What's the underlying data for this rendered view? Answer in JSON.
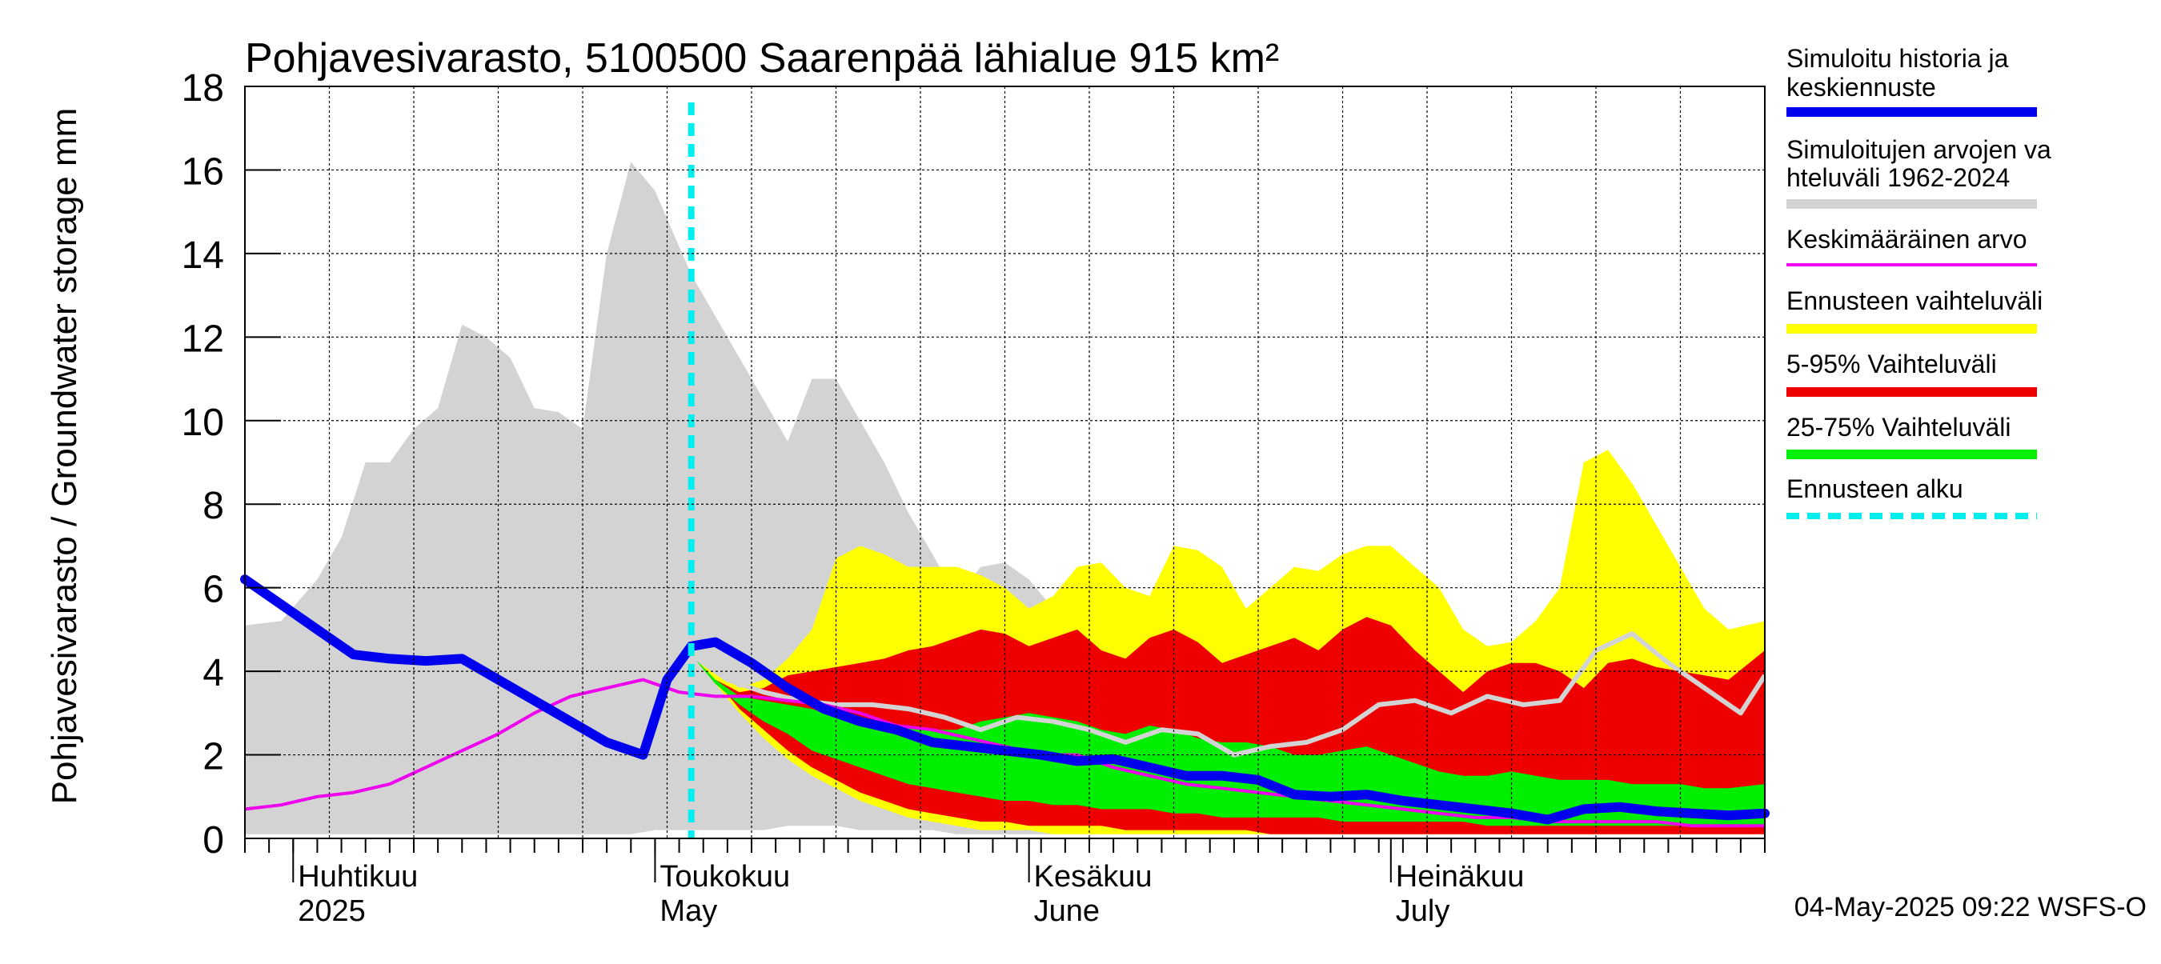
{
  "chart_data": {
    "type": "area",
    "title": "Pohjavesivarasto, 5100500 Saarenpää lähialue 915 km²",
    "ylabel": "Pohjavesivarasto / Groundwater storage   mm",
    "ylim": [
      0,
      18
    ],
    "yticks": [
      0,
      2,
      4,
      6,
      8,
      10,
      12,
      14,
      16,
      18
    ],
    "xlim": [
      "2025-03-28",
      "2025-08-01"
    ],
    "grid": true,
    "legend_position": "right",
    "month_labels": [
      {
        "date": "2025-04-01",
        "fi": "Huhtikuu",
        "en": "2025"
      },
      {
        "date": "2025-05-01",
        "fi": "Toukokuu",
        "en": "May"
      },
      {
        "date": "2025-06-01",
        "fi": "Kesäkuu",
        "en": "June"
      },
      {
        "date": "2025-07-01",
        "fi": "Heinäkuu",
        "en": "July"
      }
    ],
    "forecast_start": "2025-05-04",
    "timestamp": "04-May-2025 09:22 WSFS-O",
    "colors": {
      "simulated": "#0000ee",
      "range_all": "#d3d3d3",
      "mean": "#ee00ee",
      "forecast_range": "#ffff00",
      "p5_95": "#ee0000",
      "p25_75": "#00ee00",
      "forecast_start": "#00eeee",
      "grid": "#000000"
    },
    "legend": [
      {
        "label": "Simuloitu historia ja keskiennuste",
        "series": "simulated"
      },
      {
        "label": "Simuloitujen arvojen vaihteluväli 1962-2024",
        "series": "range_all"
      },
      {
        "label": "Keskimääräinen arvo",
        "series": "mean"
      },
      {
        "label": "Ennusteen vaihteluväli",
        "series": "forecast_range"
      },
      {
        "label": "5-95% Vaihteluväli",
        "series": "p5_95"
      },
      {
        "label": "25-75% Vaihteluväli",
        "series": "p25_75"
      },
      {
        "label": "Ennusteen alku",
        "series": "forecast_start"
      }
    ],
    "range_all": {
      "x": [
        "2025-03-28",
        "2025-03-31",
        "2025-04-03",
        "2025-04-05",
        "2025-04-07",
        "2025-04-09",
        "2025-04-11",
        "2025-04-13",
        "2025-04-15",
        "2025-04-17",
        "2025-04-19",
        "2025-04-21",
        "2025-04-23",
        "2025-04-25",
        "2025-04-27",
        "2025-04-29",
        "2025-05-01",
        "2025-05-04",
        "2025-05-06",
        "2025-05-08",
        "2025-05-10",
        "2025-05-12",
        "2025-05-14",
        "2025-05-16",
        "2025-05-18",
        "2025-05-20",
        "2025-05-22",
        "2025-05-24",
        "2025-05-26",
        "2025-05-28",
        "2025-05-30",
        "2025-06-01",
        "2025-06-03",
        "2025-06-05",
        "2025-06-07",
        "2025-06-09",
        "2025-06-11",
        "2025-06-13",
        "2025-06-15",
        "2025-06-17",
        "2025-06-19",
        "2025-06-21",
        "2025-06-23",
        "2025-06-25",
        "2025-06-27",
        "2025-06-29",
        "2025-07-01",
        "2025-07-03",
        "2025-07-05",
        "2025-07-07",
        "2025-07-09",
        "2025-07-11",
        "2025-07-13",
        "2025-07-15",
        "2025-07-17",
        "2025-07-19",
        "2025-07-21",
        "2025-07-23",
        "2025-07-25",
        "2025-07-27",
        "2025-07-29",
        "2025-08-01"
      ],
      "upper": [
        5.1,
        5.2,
        6.2,
        7.2,
        9.0,
        9.0,
        9.8,
        10.3,
        12.3,
        12.0,
        11.5,
        10.3,
        10.2,
        9.8,
        14.0,
        16.2,
        15.5,
        13.5,
        12.5,
        11.5,
        10.5,
        9.5,
        11.0,
        11.0,
        10.0,
        9.0,
        7.8,
        6.8,
        5.8,
        6.5,
        6.6,
        6.2,
        5.5,
        6.5,
        6.0,
        5.4,
        4.9,
        4.7,
        4.3,
        3.9,
        3.6,
        3.2,
        3.2,
        3.0,
        2.8,
        2.6,
        2.5,
        2.4,
        2.3,
        2.2,
        2.1,
        2.0,
        1.9,
        1.8,
        1.7,
        1.7,
        1.6,
        1.5,
        1.5,
        1.4,
        1.4,
        1.3
      ],
      "lower": [
        0.1,
        0.1,
        0.1,
        0.1,
        0.1,
        0.1,
        0.1,
        0.1,
        0.1,
        0.1,
        0.1,
        0.1,
        0.1,
        0.1,
        0.1,
        0.1,
        0.2,
        0.2,
        0.2,
        0.2,
        0.2,
        0.3,
        0.3,
        0.3,
        0.2,
        0.2,
        0.2,
        0.2,
        0.1,
        0.1,
        0.1,
        0.1,
        0.1,
        0.1,
        0.1,
        0.1,
        0.1,
        0.1,
        0.1,
        0.1,
        0.1,
        0.1,
        0.1,
        0.1,
        0.1,
        0.1,
        0.1,
        0.1,
        0.1,
        0.1,
        0.1,
        0.1,
        0.1,
        0.1,
        0.1,
        0.1,
        0.1,
        0.1,
        0.1,
        0.1,
        0.1,
        0.1
      ]
    },
    "forecast_range": {
      "x": [
        "2025-05-04",
        "2025-05-06",
        "2025-05-08",
        "2025-05-10",
        "2025-05-12",
        "2025-05-14",
        "2025-05-16",
        "2025-05-18",
        "2025-05-20",
        "2025-05-22",
        "2025-05-24",
        "2025-05-26",
        "2025-05-28",
        "2025-05-30",
        "2025-06-01",
        "2025-06-03",
        "2025-06-05",
        "2025-06-07",
        "2025-06-09",
        "2025-06-11",
        "2025-06-13",
        "2025-06-15",
        "2025-06-17",
        "2025-06-19",
        "2025-06-21",
        "2025-06-23",
        "2025-06-25",
        "2025-06-27",
        "2025-06-29",
        "2025-07-01",
        "2025-07-03",
        "2025-07-05",
        "2025-07-07",
        "2025-07-09",
        "2025-07-11",
        "2025-07-13",
        "2025-07-15",
        "2025-07-17",
        "2025-07-19",
        "2025-07-21",
        "2025-07-23",
        "2025-07-25",
        "2025-07-27",
        "2025-07-29",
        "2025-08-01"
      ],
      "upper": [
        4.5,
        4.0,
        3.6,
        3.8,
        4.3,
        5.0,
        6.7,
        7.0,
        6.8,
        6.5,
        6.5,
        6.5,
        6.3,
        6.0,
        5.5,
        5.8,
        6.5,
        6.6,
        6.0,
        5.8,
        7.0,
        6.9,
        6.5,
        5.5,
        6.0,
        6.5,
        6.4,
        6.8,
        7.0,
        7.0,
        6.5,
        6.0,
        5.0,
        4.6,
        4.7,
        5.2,
        6.0,
        9.0,
        9.3,
        8.5,
        7.5,
        6.5,
        5.5,
        5.0,
        5.2
      ],
      "lower": [
        4.4,
        3.7,
        3.0,
        2.4,
        1.9,
        1.5,
        1.2,
        0.9,
        0.7,
        0.5,
        0.4,
        0.3,
        0.2,
        0.2,
        0.2,
        0.1,
        0.1,
        0.1,
        0.1,
        0.1,
        0.1,
        0.1,
        0.1,
        0.1,
        0.1,
        0.1,
        0.1,
        0.1,
        0.1,
        0.1,
        0.1,
        0.1,
        0.1,
        0.1,
        0.1,
        0.1,
        0.1,
        0.1,
        0.1,
        0.1,
        0.1,
        0.1,
        0.1,
        0.1,
        0.1
      ]
    },
    "p5_95": {
      "x": [
        "2025-05-04",
        "2025-05-06",
        "2025-05-08",
        "2025-05-10",
        "2025-05-12",
        "2025-05-14",
        "2025-05-16",
        "2025-05-18",
        "2025-05-20",
        "2025-05-22",
        "2025-05-24",
        "2025-05-26",
        "2025-05-28",
        "2025-05-30",
        "2025-06-01",
        "2025-06-03",
        "2025-06-05",
        "2025-06-07",
        "2025-06-09",
        "2025-06-11",
        "2025-06-13",
        "2025-06-15",
        "2025-06-17",
        "2025-06-19",
        "2025-06-21",
        "2025-06-23",
        "2025-06-25",
        "2025-06-27",
        "2025-06-29",
        "2025-07-01",
        "2025-07-03",
        "2025-07-05",
        "2025-07-07",
        "2025-07-09",
        "2025-07-11",
        "2025-07-13",
        "2025-07-15",
        "2025-07-17",
        "2025-07-19",
        "2025-07-21",
        "2025-07-23",
        "2025-07-25",
        "2025-07-27",
        "2025-07-29",
        "2025-08-01"
      ],
      "upper": [
        4.4,
        3.8,
        3.5,
        3.6,
        3.9,
        4.0,
        4.1,
        4.2,
        4.3,
        4.5,
        4.6,
        4.8,
        5.0,
        4.9,
        4.6,
        4.8,
        5.0,
        4.5,
        4.3,
        4.8,
        5.0,
        4.7,
        4.2,
        4.4,
        4.6,
        4.8,
        4.5,
        5.0,
        5.3,
        5.1,
        4.5,
        4.0,
        3.5,
        4.0,
        4.2,
        4.2,
        4.0,
        3.6,
        4.2,
        4.3,
        4.1,
        4.0,
        3.9,
        3.8,
        4.5
      ],
      "lower": [
        4.4,
        3.8,
        3.1,
        2.6,
        2.1,
        1.7,
        1.4,
        1.1,
        0.9,
        0.7,
        0.6,
        0.5,
        0.4,
        0.4,
        0.3,
        0.3,
        0.3,
        0.3,
        0.2,
        0.2,
        0.2,
        0.2,
        0.2,
        0.2,
        0.1,
        0.1,
        0.1,
        0.1,
        0.1,
        0.1,
        0.1,
        0.1,
        0.1,
        0.1,
        0.1,
        0.1,
        0.1,
        0.1,
        0.1,
        0.1,
        0.1,
        0.1,
        0.1,
        0.1,
        0.1
      ]
    },
    "p25_75": {
      "x": [
        "2025-05-04",
        "2025-05-06",
        "2025-05-08",
        "2025-05-10",
        "2025-05-12",
        "2025-05-14",
        "2025-05-16",
        "2025-05-18",
        "2025-05-20",
        "2025-05-22",
        "2025-05-24",
        "2025-05-26",
        "2025-05-28",
        "2025-05-30",
        "2025-06-01",
        "2025-06-03",
        "2025-06-05",
        "2025-06-07",
        "2025-06-09",
        "2025-06-11",
        "2025-06-13",
        "2025-06-15",
        "2025-06-17",
        "2025-06-19",
        "2025-06-21",
        "2025-06-23",
        "2025-06-25",
        "2025-06-27",
        "2025-06-29",
        "2025-07-01",
        "2025-07-03",
        "2025-07-05",
        "2025-07-07",
        "2025-07-09",
        "2025-07-11",
        "2025-07-13",
        "2025-07-15",
        "2025-07-17",
        "2025-07-19",
        "2025-07-21",
        "2025-07-23",
        "2025-07-25",
        "2025-07-27",
        "2025-07-29",
        "2025-08-01"
      ],
      "upper": [
        4.4,
        3.8,
        3.4,
        3.3,
        3.2,
        3.1,
        2.9,
        2.8,
        2.7,
        2.7,
        2.6,
        2.6,
        2.8,
        2.9,
        3.0,
        2.9,
        2.8,
        2.6,
        2.5,
        2.7,
        2.6,
        2.4,
        2.3,
        2.3,
        2.2,
        2.0,
        2.0,
        2.1,
        2.2,
        2.0,
        1.8,
        1.6,
        1.5,
        1.5,
        1.6,
        1.5,
        1.4,
        1.4,
        1.4,
        1.3,
        1.3,
        1.3,
        1.2,
        1.2,
        1.3
      ],
      "lower": [
        4.4,
        3.7,
        3.2,
        2.8,
        2.5,
        2.1,
        1.9,
        1.7,
        1.5,
        1.3,
        1.2,
        1.1,
        1.0,
        0.9,
        0.9,
        0.8,
        0.8,
        0.7,
        0.7,
        0.7,
        0.6,
        0.6,
        0.5,
        0.5,
        0.5,
        0.5,
        0.5,
        0.4,
        0.4,
        0.4,
        0.4,
        0.4,
        0.4,
        0.3,
        0.3,
        0.3,
        0.3,
        0.3,
        0.3,
        0.3,
        0.3,
        0.3,
        0.3,
        0.3,
        0.3
      ]
    },
    "mean": {
      "x": [
        "2025-03-28",
        "2025-03-31",
        "2025-04-03",
        "2025-04-06",
        "2025-04-09",
        "2025-04-12",
        "2025-04-15",
        "2025-04-18",
        "2025-04-21",
        "2025-04-24",
        "2025-04-27",
        "2025-04-30",
        "2025-05-03",
        "2025-05-06",
        "2025-05-09",
        "2025-05-12",
        "2025-05-15",
        "2025-05-18",
        "2025-05-21",
        "2025-05-24",
        "2025-05-27",
        "2025-05-30",
        "2025-06-02",
        "2025-06-05",
        "2025-06-08",
        "2025-06-11",
        "2025-06-14",
        "2025-06-17",
        "2025-06-20",
        "2025-06-23",
        "2025-06-26",
        "2025-06-29",
        "2025-07-02",
        "2025-07-05",
        "2025-07-08",
        "2025-07-11",
        "2025-07-14",
        "2025-07-17",
        "2025-07-20",
        "2025-07-23",
        "2025-07-26",
        "2025-07-29",
        "2025-08-01"
      ],
      "values": [
        0.7,
        0.8,
        1.0,
        1.1,
        1.3,
        1.7,
        2.1,
        2.5,
        3.0,
        3.4,
        3.6,
        3.8,
        3.5,
        3.4,
        3.4,
        3.3,
        3.2,
        3.0,
        2.7,
        2.6,
        2.4,
        2.2,
        2.0,
        2.0,
        1.7,
        1.5,
        1.3,
        1.2,
        1.1,
        1.0,
        0.9,
        0.8,
        0.7,
        0.6,
        0.5,
        0.5,
        0.4,
        0.4,
        0.4,
        0.4,
        0.3,
        0.3,
        0.3
      ]
    },
    "forecast_median": {
      "x": [
        "2025-05-04",
        "2025-05-07",
        "2025-05-10",
        "2025-05-13",
        "2025-05-16",
        "2025-05-19",
        "2025-05-22",
        "2025-05-25",
        "2025-05-28",
        "2025-05-31",
        "2025-06-03",
        "2025-06-06",
        "2025-06-09",
        "2025-06-12",
        "2025-06-15",
        "2025-06-18",
        "2025-06-21",
        "2025-06-24",
        "2025-06-27",
        "2025-06-30",
        "2025-07-03",
        "2025-07-06",
        "2025-07-09",
        "2025-07-12",
        "2025-07-15",
        "2025-07-18",
        "2025-07-21",
        "2025-07-24",
        "2025-07-27",
        "2025-07-30",
        "2025-08-01"
      ],
      "values": [
        4.4,
        3.8,
        3.5,
        3.3,
        3.2,
        3.2,
        3.1,
        2.9,
        2.6,
        2.9,
        2.8,
        2.6,
        2.3,
        2.6,
        2.5,
        2.0,
        2.2,
        2.3,
        2.6,
        3.2,
        3.3,
        3.0,
        3.4,
        3.2,
        3.3,
        4.5,
        4.9,
        4.2,
        3.6,
        3.0,
        3.9
      ]
    },
    "simulated": {
      "x": [
        "2025-03-28",
        "2025-03-30",
        "2025-04-01",
        "2025-04-03",
        "2025-04-06",
        "2025-04-09",
        "2025-04-12",
        "2025-04-15",
        "2025-04-18",
        "2025-04-21",
        "2025-04-24",
        "2025-04-27",
        "2025-04-30",
        "2025-05-02",
        "2025-05-04",
        "2025-05-06",
        "2025-05-09",
        "2025-05-12",
        "2025-05-15",
        "2025-05-18",
        "2025-05-21",
        "2025-05-24",
        "2025-05-27",
        "2025-05-30",
        "2025-06-02",
        "2025-06-05",
        "2025-06-08",
        "2025-06-11",
        "2025-06-14",
        "2025-06-17",
        "2025-06-20",
        "2025-06-23",
        "2025-06-26",
        "2025-06-29",
        "2025-07-02",
        "2025-07-05",
        "2025-07-08",
        "2025-07-11",
        "2025-07-14",
        "2025-07-17",
        "2025-07-20",
        "2025-07-23",
        "2025-07-26",
        "2025-07-29",
        "2025-08-01"
      ],
      "values": [
        6.2,
        5.8,
        5.4,
        5.0,
        4.4,
        4.3,
        4.25,
        4.3,
        3.8,
        3.3,
        2.8,
        2.3,
        2.0,
        3.8,
        4.6,
        4.7,
        4.2,
        3.6,
        3.1,
        2.8,
        2.6,
        2.3,
        2.2,
        2.1,
        2.0,
        1.85,
        1.9,
        1.7,
        1.5,
        1.5,
        1.4,
        1.05,
        1.0,
        1.05,
        0.9,
        0.8,
        0.7,
        0.6,
        0.45,
        0.7,
        0.75,
        0.65,
        0.6,
        0.55,
        0.6
      ]
    }
  }
}
